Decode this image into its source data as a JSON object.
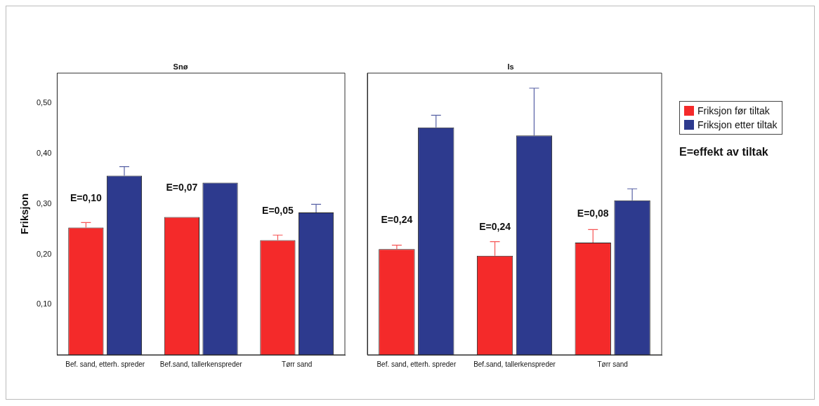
{
  "chart_data": [
    {
      "type": "bar",
      "title": "Snø",
      "ylabel": "Friksjon",
      "categories": [
        "Bef. sand, etterh. spreder",
        "Bef.sand, tallerkenspreder",
        "Tørr sand"
      ],
      "series": [
        {
          "name": "Friksjon før tiltak",
          "color": "#f42a2a",
          "values": [
            0.253,
            0.274,
            0.228
          ],
          "errors": [
            [
              0.253,
              0.263
            ],
            null,
            [
              0.228,
              0.238
            ]
          ]
        },
        {
          "name": "Friksjon etter tiltak",
          "color": "#2d3a8e",
          "values": [
            0.356,
            0.342,
            0.283
          ],
          "errors": [
            [
              0.356,
              0.374
            ],
            null,
            [
              0.283,
              0.299
            ]
          ]
        }
      ],
      "ylim": [
        0,
        0.56
      ],
      "yticks": [
        {
          "value": 0.1,
          "label": "0,10"
        },
        {
          "value": 0.2,
          "label": "0,20"
        },
        {
          "value": 0.3,
          "label": "0,30"
        },
        {
          "value": 0.4,
          "label": "0,40"
        },
        {
          "value": 0.5,
          "label": "0,50"
        }
      ],
      "annotations": [
        "E=0,10",
        "E=0,07",
        "E=0,05"
      ],
      "grid": false,
      "legend": "right"
    },
    {
      "type": "bar",
      "title": "Is",
      "categories": [
        "Bef. sand, etterh. spreder",
        "Bef.sand, tallerkenspreder",
        "Tørr sand"
      ],
      "series": [
        {
          "name": "Friksjon før tiltak",
          "color": "#f42a2a",
          "values": [
            0.21,
            0.197,
            0.223
          ],
          "errors": [
            [
              0.21,
              0.218
            ],
            [
              0.197,
              0.225
            ],
            [
              0.223,
              0.249
            ]
          ]
        },
        {
          "name": "Friksjon etter tiltak",
          "color": "#2d3a8e",
          "values": [
            0.452,
            0.436,
            0.307
          ],
          "errors": [
            [
              0.452,
              0.476
            ],
            [
              0.436,
              0.53
            ],
            [
              0.307,
              0.33
            ]
          ]
        }
      ],
      "ylim": [
        0,
        0.56
      ],
      "yticks": [
        {
          "value": 0.1,
          "label": null
        },
        {
          "value": 0.2,
          "label": null
        },
        {
          "value": 0.3,
          "label": null
        },
        {
          "value": 0.4,
          "label": null
        },
        {
          "value": 0.5,
          "label": null
        }
      ],
      "tick_labels": "x",
      "annotations": [
        "E=0,24",
        "E=0,24",
        "E=0,08",
        "E=effekt av tiltak"
      ],
      "grid": false,
      "legend": "right"
    }
  ]
}
